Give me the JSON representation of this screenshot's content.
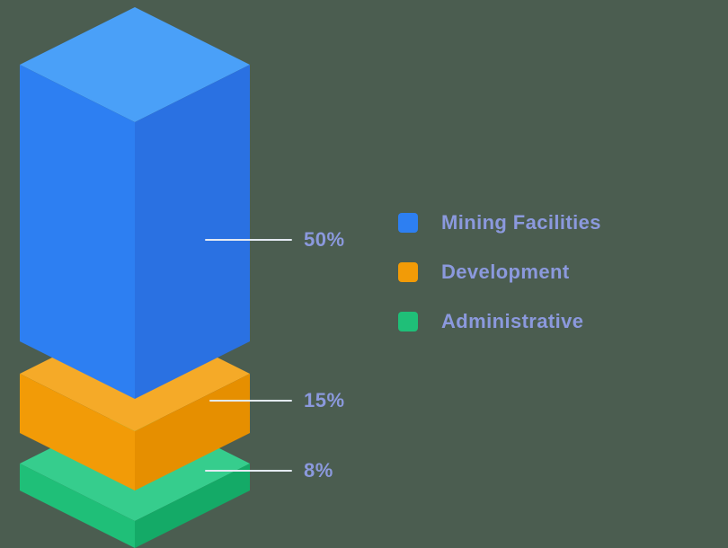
{
  "background_color": "#4b5d50",
  "text_color": "#8b99dd",
  "leader_line_color": "#e4eaf3",
  "chart_data": {
    "type": "bar",
    "variant": "isometric-3d-stacked-column",
    "title": "",
    "unit": "%",
    "categories": [
      "Mining Facilities",
      "Development",
      "Administrative"
    ],
    "values": [
      50,
      15,
      8
    ],
    "legend_position": "right",
    "series": [
      {
        "name": "Mining Facilities",
        "value": 50,
        "label": "50%",
        "color": "#2d7ff2",
        "color_top": "#4aa0f8",
        "color_side": "#2a71e2"
      },
      {
        "name": "Development",
        "value": 15,
        "label": "15%",
        "color": "#f29b07",
        "color_top": "#f5aa28",
        "color_side": "#e68f00"
      },
      {
        "name": "Administrative",
        "value": 8,
        "label": "8%",
        "color": "#1fbf78",
        "color_top": "#36cd8d",
        "color_side": "#14aa67"
      }
    ]
  },
  "legend": {
    "items": [
      {
        "label": "Mining Facilities",
        "color": "#2d7ff2"
      },
      {
        "label": "Development",
        "color": "#f29b07"
      },
      {
        "label": "Administrative",
        "color": "#1fbf78"
      }
    ]
  }
}
